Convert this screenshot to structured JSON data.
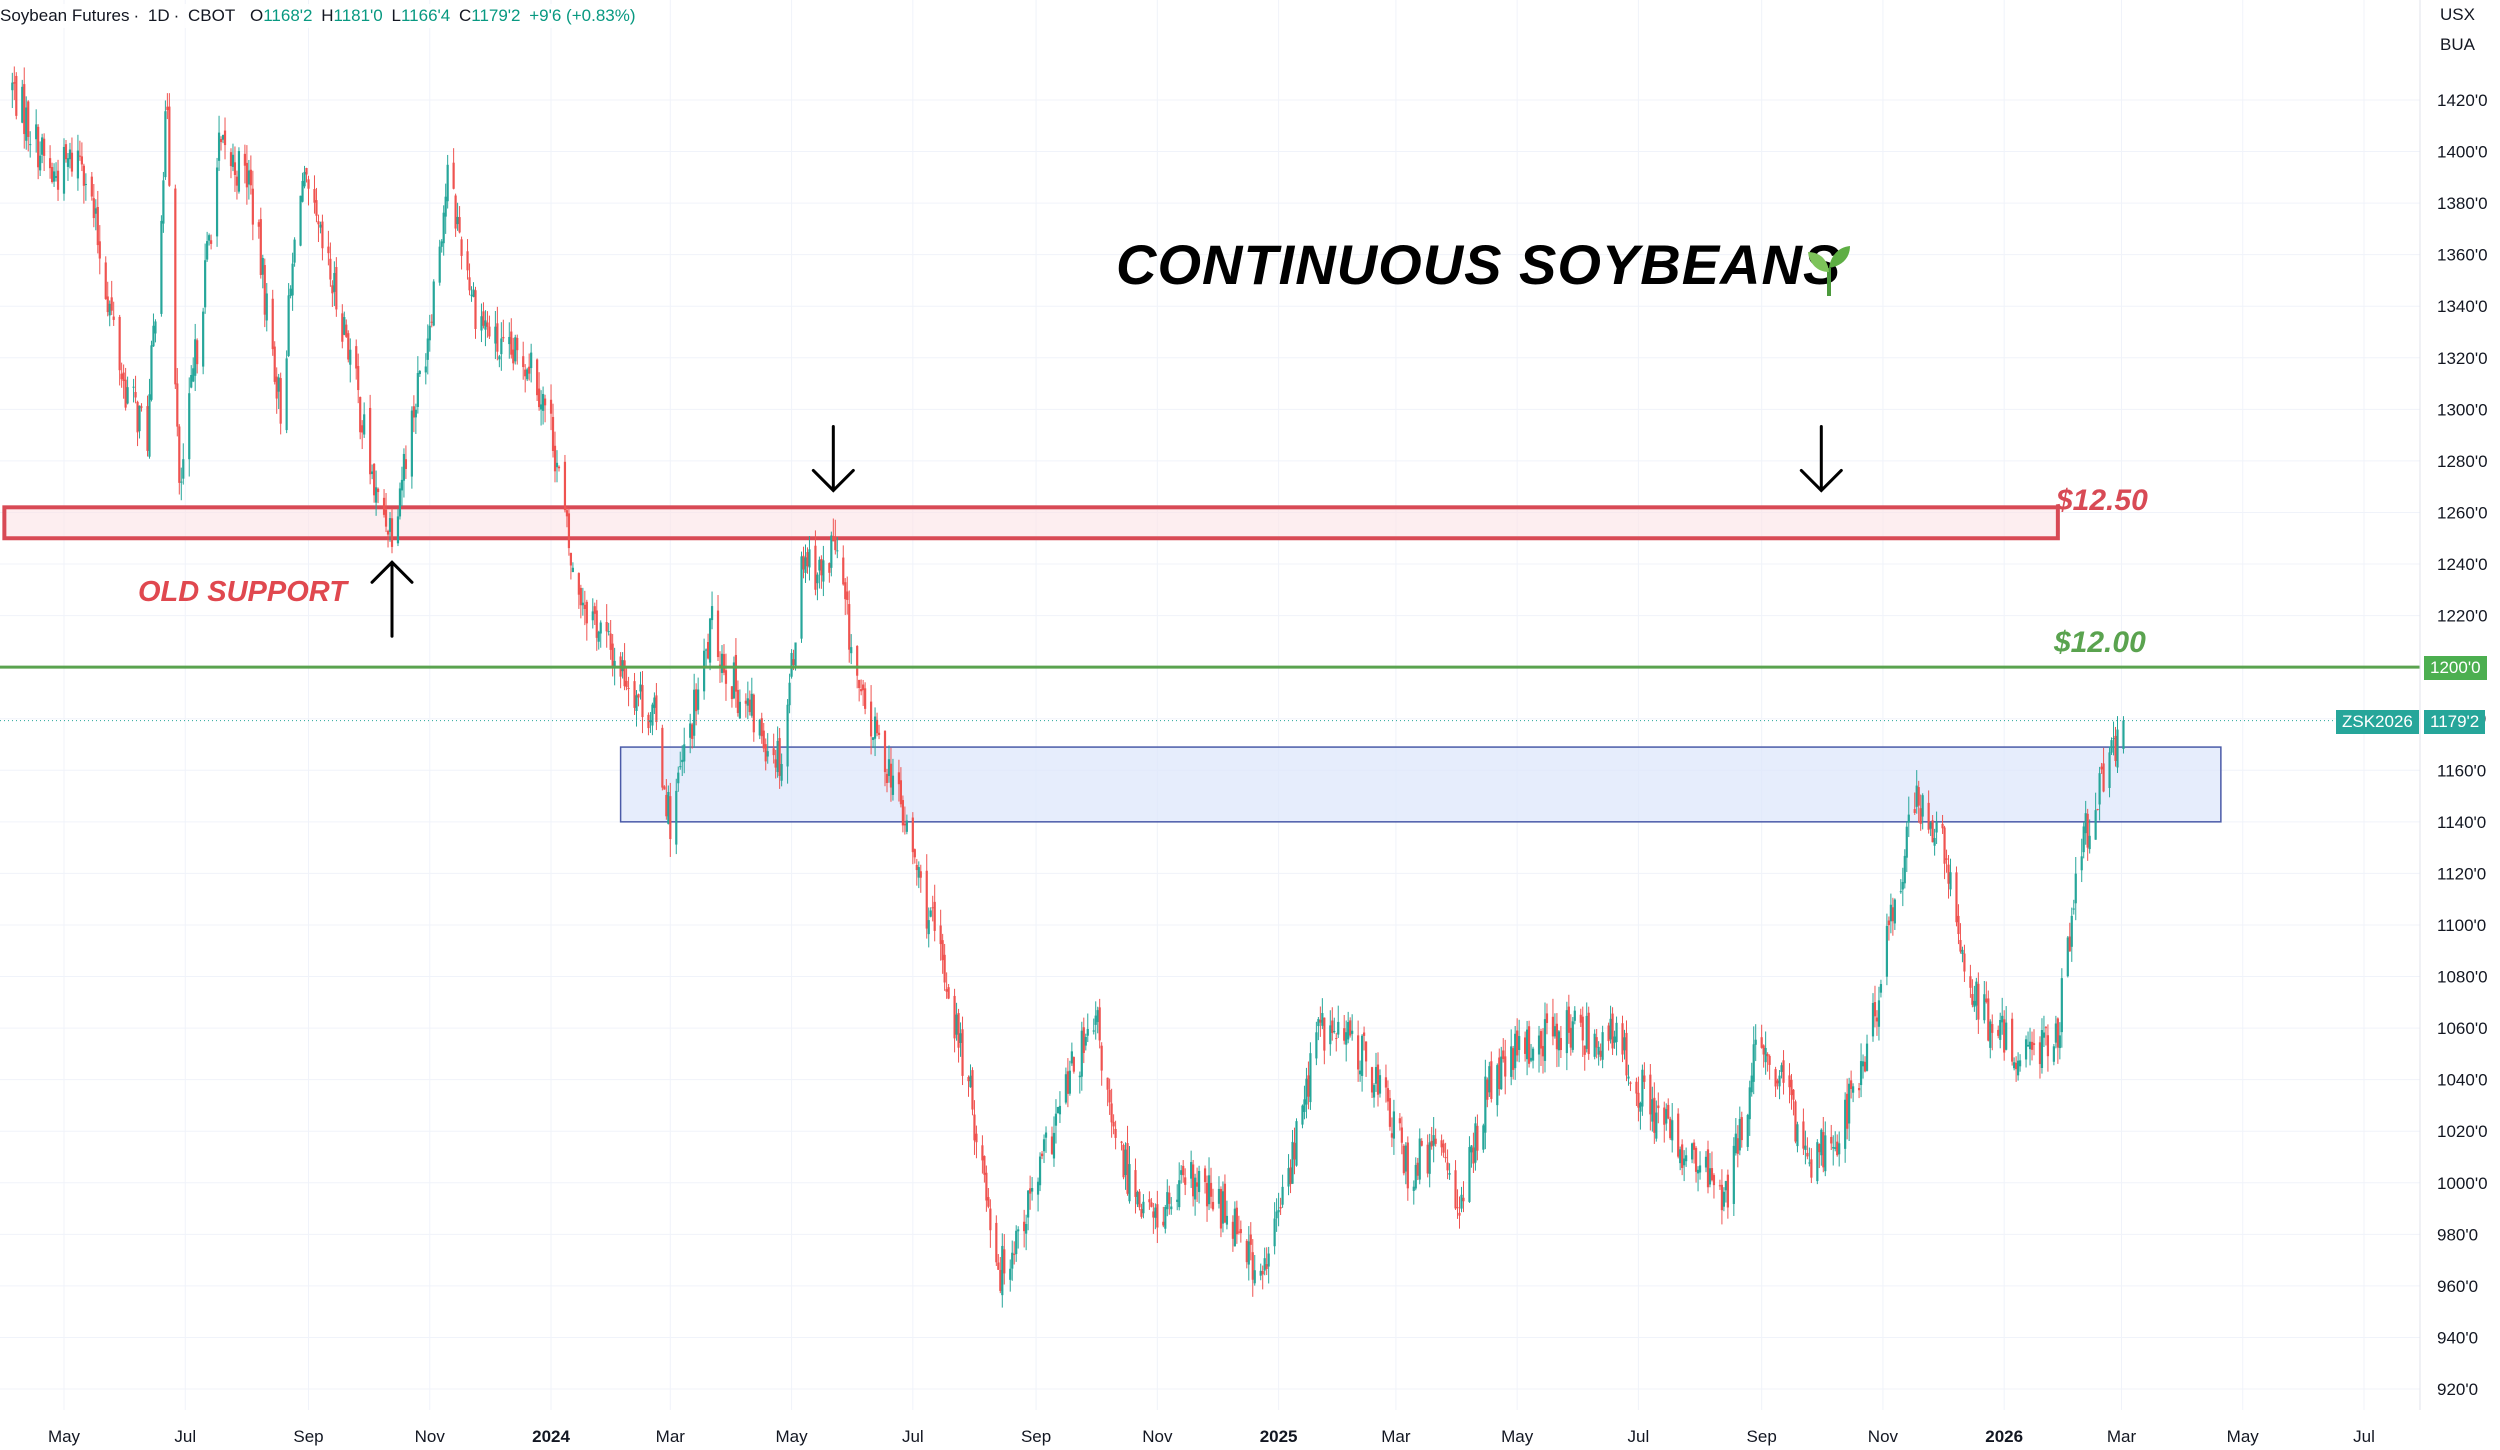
{
  "legend": {
    "symbol": "Soybean Futures",
    "interval": "1D",
    "exchange": "CBOT",
    "open_key": "O",
    "open": "1168'2",
    "high_key": "H",
    "high": "1181'0",
    "low_key": "L",
    "low": "1166'4",
    "close_key": "C",
    "close": "1179'2",
    "change": "+9'6 (+0.83%)"
  },
  "currency": "USX",
  "unit": "BUA",
  "annotations": {
    "title": "CONTINUOUS SOYBEANS",
    "title_icon": "seedling-icon",
    "old_support": "OLD SUPPORT",
    "level_high_label": "$12.50",
    "level_mid_label": "$12.00"
  },
  "price_badges": {
    "level": "1200'0",
    "ticker": "ZSK2026",
    "last": "1179'2"
  },
  "colors": {
    "up": "#26a69a",
    "down": "#ef5350",
    "resistance_box": "#d84a55",
    "level_line": "#5aa34f",
    "support_box_fill": "#dbe6fb",
    "support_box_stroke": "#4a5aa8"
  },
  "chart_data": {
    "type": "candlestick",
    "y_unit": "cents per bushel",
    "ylim": [
      910,
      1440
    ],
    "y_ticks": [
      "1420'0",
      "1400'0",
      "1380'0",
      "1360'0",
      "1340'0",
      "1320'0",
      "1300'0",
      "1280'0",
      "1260'0",
      "1240'0",
      "1220'0",
      "1200'0",
      "1180'0",
      "1160'0",
      "1140'0",
      "1120'0",
      "1100'0",
      "1080'0",
      "1060'0",
      "1040'0",
      "1020'0",
      "1000'0",
      "980'0",
      "960'0",
      "940'0",
      "920'0"
    ],
    "x_ticks": [
      {
        "label": "May",
        "date": "2023-05",
        "bold": false
      },
      {
        "label": "Jul",
        "date": "2023-07",
        "bold": false
      },
      {
        "label": "Sep",
        "date": "2023-09",
        "bold": false
      },
      {
        "label": "Nov",
        "date": "2023-11",
        "bold": false
      },
      {
        "label": "2024",
        "date": "2024-01",
        "bold": true
      },
      {
        "label": "Mar",
        "date": "2024-03",
        "bold": false
      },
      {
        "label": "May",
        "date": "2024-05",
        "bold": false
      },
      {
        "label": "Jul",
        "date": "2024-07",
        "bold": false
      },
      {
        "label": "Sep",
        "date": "2024-09",
        "bold": false
      },
      {
        "label": "Nov",
        "date": "2024-11",
        "bold": false
      },
      {
        "label": "2025",
        "date": "2025-01",
        "bold": true
      },
      {
        "label": "Mar",
        "date": "2025-03",
        "bold": false
      },
      {
        "label": "May",
        "date": "2025-05",
        "bold": false
      },
      {
        "label": "Jul",
        "date": "2025-07",
        "bold": false
      },
      {
        "label": "Sep",
        "date": "2025-09",
        "bold": false
      },
      {
        "label": "Nov",
        "date": "2025-11",
        "bold": false
      },
      {
        "label": "2026",
        "date": "2026-01",
        "bold": true
      },
      {
        "label": "Mar",
        "date": "2026-03",
        "bold": false
      },
      {
        "label": "May",
        "date": "2026-05",
        "bold": false
      },
      {
        "label": "Jul",
        "date": "2026-07",
        "bold": false
      }
    ],
    "series_close_path": [
      {
        "date": "2023-04-05",
        "value": 1425
      },
      {
        "date": "2023-04-25",
        "value": 1390
      },
      {
        "date": "2023-05-10",
        "value": 1400
      },
      {
        "date": "2023-05-31",
        "value": 1310
      },
      {
        "date": "2023-06-12",
        "value": 1290
      },
      {
        "date": "2023-06-22",
        "value": 1420
      },
      {
        "date": "2023-06-28",
        "value": 1265
      },
      {
        "date": "2023-07-18",
        "value": 1400
      },
      {
        "date": "2023-08-02",
        "value": 1390
      },
      {
        "date": "2023-08-18",
        "value": 1300
      },
      {
        "date": "2023-08-28",
        "value": 1390
      },
      {
        "date": "2023-09-20",
        "value": 1330
      },
      {
        "date": "2023-10-05",
        "value": 1265
      },
      {
        "date": "2023-10-13",
        "value": 1255
      },
      {
        "date": "2023-10-30",
        "value": 1325
      },
      {
        "date": "2023-11-10",
        "value": 1390
      },
      {
        "date": "2023-11-24",
        "value": 1340
      },
      {
        "date": "2023-12-08",
        "value": 1320
      },
      {
        "date": "2023-12-22",
        "value": 1320
      },
      {
        "date": "2024-01-02",
        "value": 1290
      },
      {
        "date": "2024-01-12",
        "value": 1235
      },
      {
        "date": "2024-02-01",
        "value": 1205
      },
      {
        "date": "2024-02-22",
        "value": 1180
      },
      {
        "date": "2024-03-01",
        "value": 1140
      },
      {
        "date": "2024-03-15",
        "value": 1190
      },
      {
        "date": "2024-03-22",
        "value": 1215
      },
      {
        "date": "2024-04-01",
        "value": 1195
      },
      {
        "date": "2024-04-15",
        "value": 1175
      },
      {
        "date": "2024-04-26",
        "value": 1165
      },
      {
        "date": "2024-05-07",
        "value": 1245
      },
      {
        "date": "2024-05-17",
        "value": 1235
      },
      {
        "date": "2024-05-22",
        "value": 1250
      },
      {
        "date": "2024-06-05",
        "value": 1185
      },
      {
        "date": "2024-06-20",
        "value": 1160
      },
      {
        "date": "2024-07-05",
        "value": 1115
      },
      {
        "date": "2024-07-19",
        "value": 1075
      },
      {
        "date": "2024-08-01",
        "value": 1025
      },
      {
        "date": "2024-08-14",
        "value": 965
      },
      {
        "date": "2024-08-30",
        "value": 995
      },
      {
        "date": "2024-09-20",
        "value": 1045
      },
      {
        "date": "2024-10-02",
        "value": 1060
      },
      {
        "date": "2024-10-10",
        "value": 1015
      },
      {
        "date": "2024-10-30",
        "value": 985
      },
      {
        "date": "2024-11-18",
        "value": 1000
      },
      {
        "date": "2024-12-12",
        "value": 985
      },
      {
        "date": "2024-12-23",
        "value": 960
      },
      {
        "date": "2025-01-08",
        "value": 1010
      },
      {
        "date": "2025-01-21",
        "value": 1060
      },
      {
        "date": "2025-02-07",
        "value": 1055
      },
      {
        "date": "2025-02-20",
        "value": 1040
      },
      {
        "date": "2025-03-07",
        "value": 1005
      },
      {
        "date": "2025-03-25",
        "value": 1015
      },
      {
        "date": "2025-04-03",
        "value": 990
      },
      {
        "date": "2025-04-15",
        "value": 1035
      },
      {
        "date": "2025-05-01",
        "value": 1050
      },
      {
        "date": "2025-05-23",
        "value": 1060
      },
      {
        "date": "2025-06-20",
        "value": 1055
      },
      {
        "date": "2025-07-03",
        "value": 1035
      },
      {
        "date": "2025-07-25",
        "value": 1010
      },
      {
        "date": "2025-08-15",
        "value": 995
      },
      {
        "date": "2025-08-29",
        "value": 1050
      },
      {
        "date": "2025-09-10",
        "value": 1040
      },
      {
        "date": "2025-09-25",
        "value": 1010
      },
      {
        "date": "2025-10-10",
        "value": 1020
      },
      {
        "date": "2025-10-24",
        "value": 1050
      },
      {
        "date": "2025-11-05",
        "value": 1100
      },
      {
        "date": "2025-11-17",
        "value": 1150
      },
      {
        "date": "2025-12-01",
        "value": 1130
      },
      {
        "date": "2025-12-10",
        "value": 1090
      },
      {
        "date": "2025-12-24",
        "value": 1060
      },
      {
        "date": "2026-01-12",
        "value": 1050
      },
      {
        "date": "2026-01-28",
        "value": 1060
      },
      {
        "date": "2026-02-09",
        "value": 1130
      },
      {
        "date": "2026-02-20",
        "value": 1155
      },
      {
        "date": "2026-03-02",
        "value": 1179.25
      }
    ],
    "levels": [
      {
        "label": "$12.50",
        "value": 1255,
        "style": "box",
        "from": "2023-04-01",
        "to": "2026-01-28",
        "band": [
          1250,
          1262
        ]
      },
      {
        "label": "$12.00",
        "value": 1200,
        "style": "line"
      },
      {
        "label": "",
        "style": "box",
        "from": "2024-02-05",
        "to": "2026-04-20",
        "band": [
          1140,
          1169
        ]
      }
    ],
    "last_price": 1179.25,
    "arrows": [
      {
        "direction": "up",
        "date": "2023-10-13",
        "value": 1250
      },
      {
        "direction": "down",
        "date": "2024-05-22",
        "value": 1260
      },
      {
        "direction": "down",
        "date": "2025-10-01",
        "value": 1260
      }
    ]
  }
}
